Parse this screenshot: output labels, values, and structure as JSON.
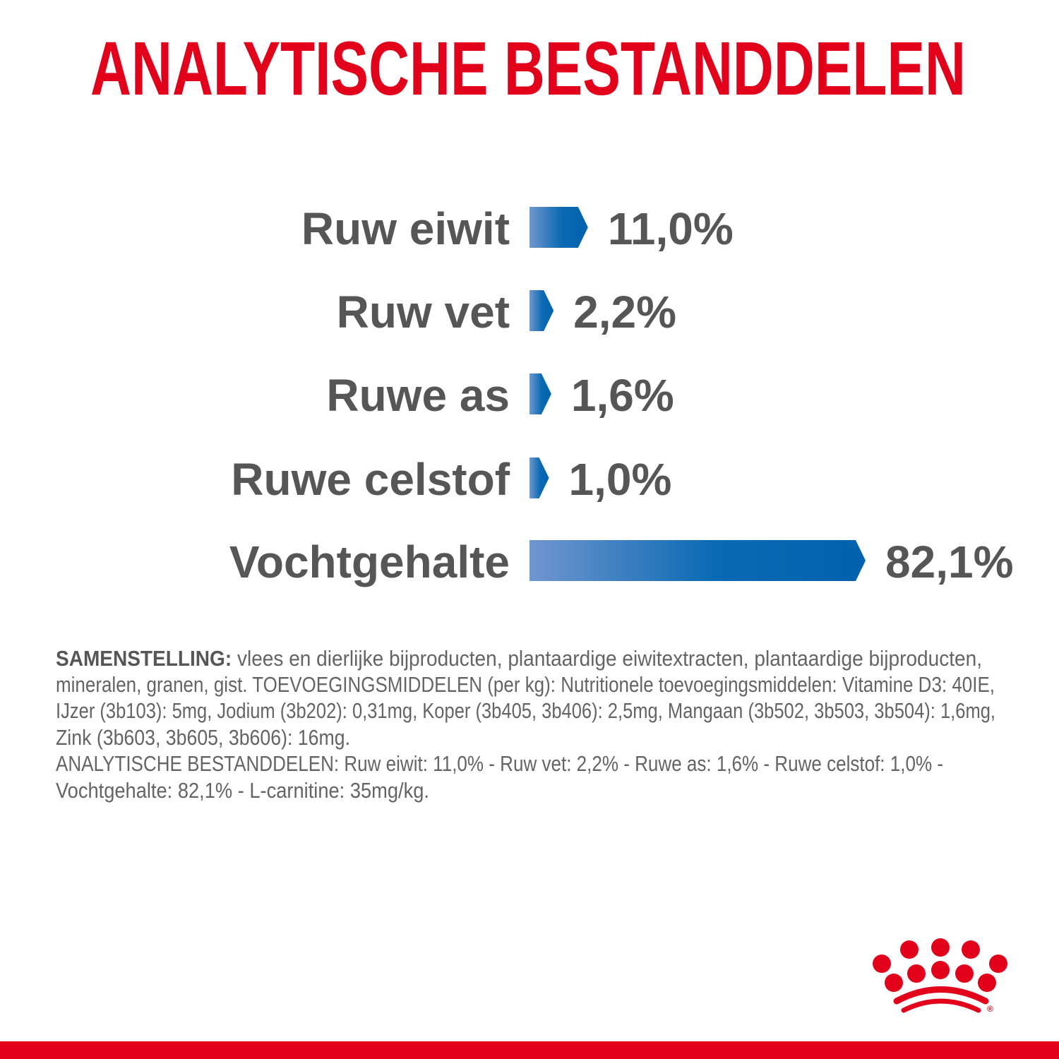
{
  "title": "ANALYTISCHE BESTANDDELEN",
  "colors": {
    "brand_red": "#e2001a",
    "bar_start": "#7096cf",
    "bar_end": "#0061ae",
    "text": "#565656"
  },
  "chart_data": {
    "type": "bar",
    "orientation": "horizontal",
    "unit": "%",
    "categories": [
      "Ruw eiwit",
      "Ruw vet",
      "Ruwe as",
      "Ruwe celstof",
      "Vochtgehalte"
    ],
    "values": [
      11.0,
      2.2,
      1.6,
      1.0,
      82.1
    ],
    "value_labels": [
      "11,0%",
      "2,2%",
      "1,6%",
      "1,0%",
      "82,1%"
    ],
    "grid": false
  },
  "composition": {
    "heading": "SAMENSTELLING:",
    "lines": [
      " vlees en dierlijke bijproducten, plantaardige eiwitextracten, plantaardige bijproducten,",
      "mineralen, granen, gist. TOEVOEGINGSMIDDELEN (per kg): Nutritionele toevoegingsmiddelen: Vitamine D3: 40IE,",
      "IJzer (3b103): 5mg, Jodium (3b202): 0,31mg, Koper (3b405, 3b406): 2,5mg, Mangaan (3b502, 3b503, 3b504): 1,6mg,",
      "Zink (3b603, 3b605, 3b606): 16mg.",
      "ANALYTISCHE BESTANDDELEN: Ruw eiwit: 11,0% - Ruw vet: 2,2% - Ruwe as: 1,6% - Ruwe celstof: 1,0% -",
      "Vochtgehalte: 82,1% - L-carnitine: 35mg/kg."
    ]
  },
  "logo": {
    "name": "royal-canin-crown-logo",
    "mark": "®"
  }
}
